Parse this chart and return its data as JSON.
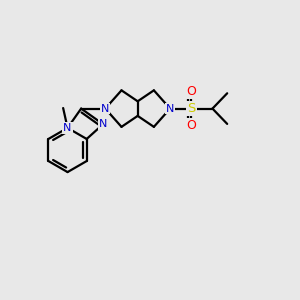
{
  "bg": "#e8e8e8",
  "bc": "#000000",
  "Nc": "#0000cc",
  "Sc": "#cccc00",
  "Oc": "#ff0000",
  "lw": 1.6,
  "lw_dbl": 1.4,
  "figsize": [
    3.0,
    3.0
  ],
  "dpi": 100,
  "xlim": [
    0,
    10
  ],
  "ylim": [
    0,
    10
  ]
}
